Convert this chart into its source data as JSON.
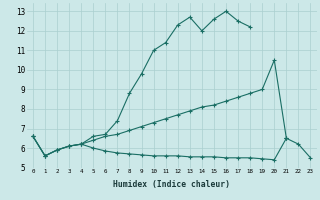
{
  "xlabel": "Humidex (Indice chaleur)",
  "bg_color": "#cce8e8",
  "grid_color": "#aacfcf",
  "line_color": "#1a6e64",
  "xlim": [
    -0.5,
    23.5
  ],
  "ylim": [
    5,
    13.4
  ],
  "yticks": [
    5,
    6,
    7,
    8,
    9,
    10,
    11,
    12,
    13
  ],
  "xticks": [
    0,
    1,
    2,
    3,
    4,
    5,
    6,
    7,
    8,
    9,
    10,
    11,
    12,
    13,
    14,
    15,
    16,
    17,
    18,
    19,
    20,
    21,
    22,
    23
  ],
  "line1_y": [
    6.6,
    5.6,
    5.9,
    6.1,
    6.2,
    6.6,
    6.7,
    7.4,
    8.8,
    9.8,
    11.0,
    11.4,
    12.3,
    12.7,
    12.0,
    12.6,
    13.0,
    12.5,
    12.2,
    null,
    null,
    6.5,
    null,
    null
  ],
  "line2_y": [
    6.6,
    5.6,
    5.9,
    6.1,
    6.2,
    6.4,
    6.6,
    6.7,
    6.9,
    7.1,
    7.3,
    7.5,
    7.7,
    7.9,
    8.1,
    8.2,
    8.4,
    8.6,
    8.8,
    9.0,
    10.5,
    6.5,
    null,
    null
  ],
  "line3_y": [
    6.6,
    5.6,
    5.9,
    6.1,
    6.2,
    6.0,
    5.85,
    5.75,
    5.7,
    5.65,
    5.6,
    5.6,
    5.6,
    5.55,
    5.55,
    5.55,
    5.5,
    5.5,
    5.5,
    5.45,
    5.4,
    6.5,
    6.2,
    5.5
  ]
}
